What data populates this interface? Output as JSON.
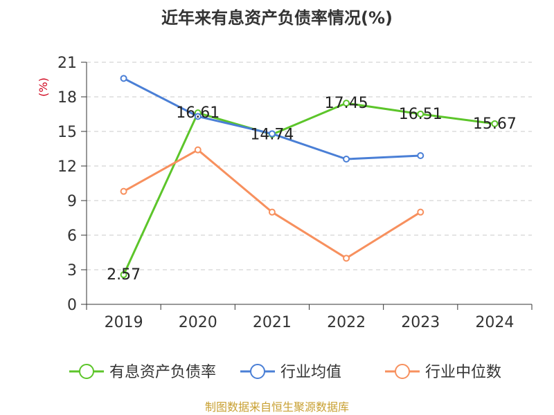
{
  "chart_data": {
    "type": "line",
    "title": "近年来有息资产负债率情况(%)",
    "ylabel": "(%)",
    "xlabel": "",
    "categories": [
      "2019",
      "2020",
      "2021",
      "2022",
      "2023",
      "2024"
    ],
    "ylim": [
      0,
      21
    ],
    "yticks": [
      0,
      3,
      6,
      9,
      12,
      15,
      18,
      21
    ],
    "grid": true,
    "legend_position": "bottom",
    "series": [
      {
        "name": "有息资产负债率",
        "color": "#5cc52a",
        "values": [
          2.57,
          16.61,
          14.74,
          17.45,
          16.51,
          15.67
        ],
        "show_labels": true
      },
      {
        "name": "行业均值",
        "color": "#4a7fd6",
        "values": [
          19.6,
          16.3,
          14.8,
          12.6,
          12.9,
          null
        ],
        "show_labels": false
      },
      {
        "name": "行业中位数",
        "color": "#f7905e",
        "values": [
          9.8,
          13.4,
          8.0,
          4.0,
          8.0,
          null
        ],
        "show_labels": false
      }
    ]
  },
  "source_text": "制图数据来自恒生聚源数据库"
}
